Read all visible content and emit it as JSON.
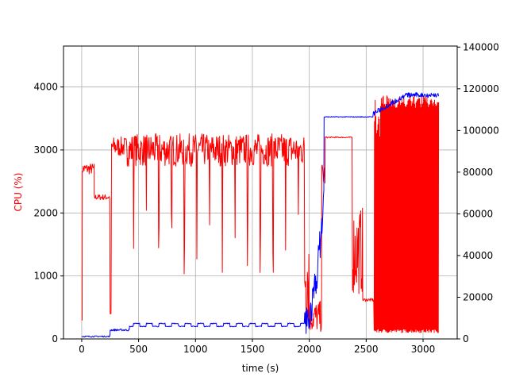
{
  "chart_data": {
    "type": "line",
    "xlabel": "time (s)",
    "ylabel": "CPU (%)",
    "ylabel_color": "#ff0000",
    "xlim": [
      -160,
      3300
    ],
    "ylim": [
      0,
      4650
    ],
    "y2lim": [
      0,
      140500
    ],
    "grid": true,
    "x_ticks": [
      0,
      500,
      1000,
      1500,
      2000,
      2500,
      3000
    ],
    "y_ticks": [
      0,
      1000,
      2000,
      3000,
      4000
    ],
    "y2_ticks": [
      0,
      20000,
      40000,
      60000,
      80000,
      100000,
      120000,
      140000
    ],
    "series": [
      {
        "axis": "left",
        "color": "#ff0000",
        "segments": [
          {
            "t0": 0,
            "t1": 5,
            "base": 300,
            "amp": 0,
            "drops": 0
          },
          {
            "t0": 5,
            "t1": 110,
            "base": 2700,
            "amp": 90,
            "drops": 0
          },
          {
            "t0": 110,
            "t1": 250,
            "base": 2250,
            "amp": 45,
            "drops": 0
          },
          {
            "t0": 250,
            "t1": 262,
            "base": 400,
            "amp": 0,
            "drops": 0
          },
          {
            "t0": 262,
            "t1": 400,
            "base": 3050,
            "amp": 160,
            "drops": 0
          },
          {
            "t0": 400,
            "t1": 1960,
            "base": 3000,
            "amp": 260,
            "drops": 14,
            "drop_min": 850
          },
          {
            "t0": 1960,
            "t1": 2000,
            "base": 1100,
            "amp": 900,
            "drops": 0
          },
          {
            "t0": 2000,
            "t1": 2110,
            "base": 350,
            "amp": 250,
            "drops": 0
          },
          {
            "t0": 2110,
            "t1": 2140,
            "base": 2600,
            "amp": 200,
            "drops": 0
          },
          {
            "t0": 2140,
            "t1": 2380,
            "base": 3200,
            "amp": 10,
            "drops": 0
          },
          {
            "t0": 2380,
            "t1": 2470,
            "base": 1400,
            "amp": 700,
            "drops": 0
          },
          {
            "t0": 2470,
            "t1": 2570,
            "base": 620,
            "amp": 25,
            "drops": 0
          },
          {
            "t0": 2570,
            "t1": 3140,
            "base": 3200,
            "amp": 0,
            "osc_low": 100,
            "osc_high": 3860,
            "drops": 0
          }
        ]
      },
      {
        "axis": "right",
        "color": "#0000ff",
        "segments": [
          {
            "t0": 0,
            "t1": 250,
            "base": 1200,
            "amp": 300
          },
          {
            "t0": 250,
            "t1": 420,
            "base": 4300,
            "amp": 500
          },
          {
            "t0": 420,
            "t1": 1960,
            "base": 6500,
            "amp": 1200
          },
          {
            "t0": 1960,
            "t1": 2130,
            "base": 30000,
            "amp": 35000
          },
          {
            "t0": 2130,
            "t1": 2560,
            "base": 106500,
            "amp": 200
          },
          {
            "t0": 2560,
            "t1": 3140,
            "base": 114000,
            "amp": 2500
          }
        ]
      }
    ]
  }
}
